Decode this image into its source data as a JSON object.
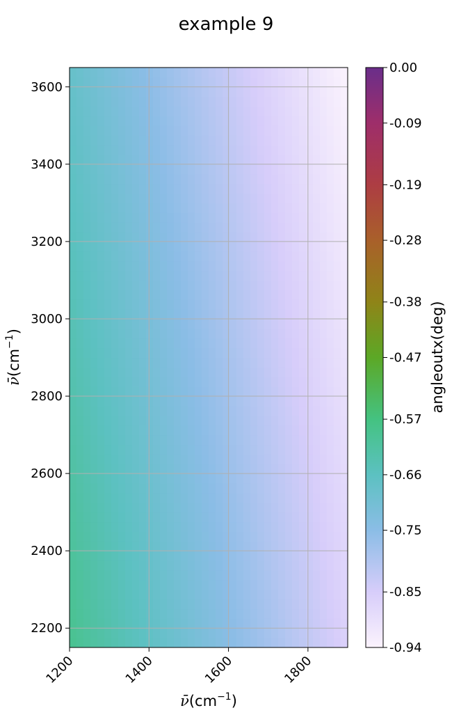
{
  "chart_data": {
    "type": "heatmap",
    "title": "example 9",
    "xlabel_symbol": "ν̄",
    "xlabel_unit": "(cm",
    "xlabel_exp": "−1",
    "xlabel_close": ")",
    "ylabel_symbol": "ν̄",
    "ylabel_unit": "(cm",
    "ylabel_exp": "−1",
    "ylabel_close": ")",
    "colorbar_label": "angleoutx(deg)",
    "xlim": [
      1200,
      1900
    ],
    "ylim": [
      2150,
      3650
    ],
    "x_ticks": [
      "1200",
      "1400",
      "1600",
      "1800"
    ],
    "x_tick_values": [
      1200,
      1400,
      1600,
      1800
    ],
    "y_ticks": [
      "2200",
      "2400",
      "2600",
      "2800",
      "3000",
      "3200",
      "3400",
      "3600"
    ],
    "y_tick_values": [
      2200,
      2400,
      2600,
      2800,
      3000,
      3200,
      3400,
      3600
    ],
    "grid": true,
    "value_range": [
      -0.94,
      0.0
    ],
    "value_samples": {
      "x": [
        1200,
        1900
      ],
      "y": [
        2150,
        3650
      ],
      "corners": {
        "x1200_y2150": -0.59,
        "x1900_y2150": -0.86,
        "x1200_y3650": -0.68,
        "x1900_y3650": -0.94
      }
    },
    "colorbar_ticks": [
      "0.00",
      "-0.09",
      "-0.19",
      "-0.28",
      "-0.38",
      "-0.47",
      "-0.57",
      "-0.66",
      "-0.75",
      "-0.85",
      "-0.94"
    ],
    "colorbar_tick_values": [
      0.0,
      -0.09,
      -0.19,
      -0.28,
      -0.38,
      -0.47,
      -0.57,
      -0.66,
      -0.75,
      -0.85,
      -0.94
    ],
    "colormap_stops": [
      {
        "v": -0.94,
        "color": "#fbf3fd"
      },
      {
        "v": -0.85,
        "color": "#d7cdfa"
      },
      {
        "v": -0.75,
        "color": "#8bbde6"
      },
      {
        "v": -0.66,
        "color": "#5cc1c1"
      },
      {
        "v": -0.57,
        "color": "#44c281"
      },
      {
        "v": -0.47,
        "color": "#5ca826"
      },
      {
        "v": -0.38,
        "color": "#8f8418"
      },
      {
        "v": -0.28,
        "color": "#a9602a"
      },
      {
        "v": -0.19,
        "color": "#ad3d43"
      },
      {
        "v": -0.09,
        "color": "#9e2e6a"
      },
      {
        "v": 0.0,
        "color": "#6a2e8a"
      }
    ]
  }
}
